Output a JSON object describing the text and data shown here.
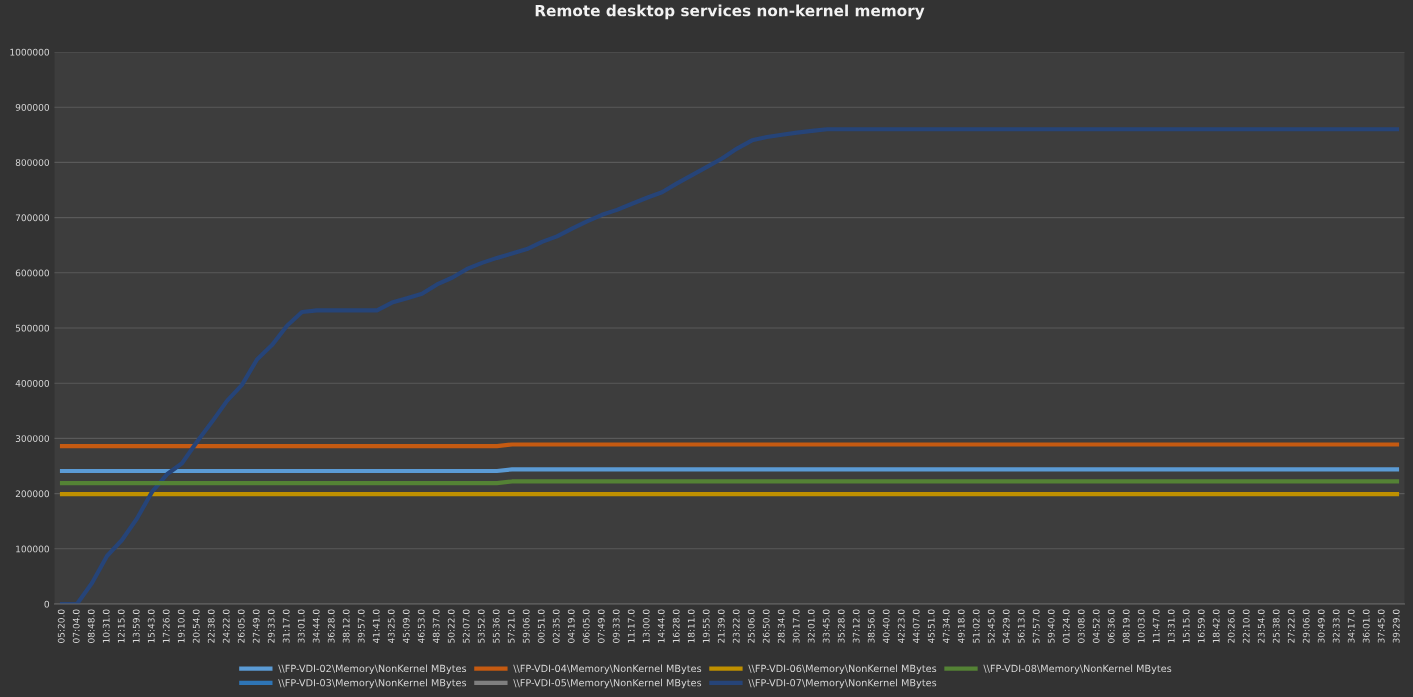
{
  "chart_data": {
    "type": "line",
    "title": "Remote desktop services non-kernel memory",
    "categories": [
      "05:20.0",
      "07:04.0",
      "08:48.0",
      "10:31.0",
      "12:15.0",
      "13:59.0",
      "15:43.0",
      "17:26.0",
      "19:10.0",
      "20:54.0",
      "22:38.0",
      "24:22.0",
      "26:05.0",
      "27:49.0",
      "29:33.0",
      "31:17.0",
      "33:01.0",
      "34:44.0",
      "36:28.0",
      "38:12.0",
      "39:57.0",
      "41:41.0",
      "43:25.0",
      "45:09.0",
      "46:53.0",
      "48:37.0",
      "50:22.0",
      "52:07.0",
      "53:52.0",
      "55:36.0",
      "57:21.0",
      "59:06.0",
      "00:51.0",
      "02:35.0",
      "04:19.0",
      "06:05.0",
      "07:49.0",
      "09:33.0",
      "11:17.0",
      "13:00.0",
      "14:44.0",
      "16:28.0",
      "18:11.0",
      "19:55.0",
      "21:39.0",
      "23:22.0",
      "25:06.0",
      "26:50.0",
      "28:34.0",
      "30:17.0",
      "32:01.0",
      "33:45.0",
      "35:28.0",
      "37:12.0",
      "38:56.0",
      "40:40.0",
      "42:23.0",
      "44:07.0",
      "45:51.0",
      "47:34.0",
      "49:18.0",
      "51:02.0",
      "52:45.0",
      "54:29.0",
      "56:13.0",
      "57:57.0",
      "59:40.0",
      "01:24.0",
      "03:08.0",
      "04:52.0",
      "06:36.0",
      "08:19.0",
      "10:03.0",
      "11:47.0",
      "13:31.0",
      "15:15.0",
      "16:59.0",
      "18:42.0",
      "20:26.0",
      "22:10.0",
      "23:54.0",
      "25:38.0",
      "27:22.0",
      "29:06.0",
      "30:49.0",
      "32:33.0",
      "34:17.0",
      "36:01.0",
      "37:45.0",
      "39:29.0"
    ],
    "ylim": [
      0,
      1000000
    ],
    "yticks": [
      0,
      100000,
      200000,
      300000,
      400000,
      500000,
      600000,
      700000,
      800000,
      900000,
      1000000
    ],
    "grid": "y",
    "legend": "bottom",
    "marker": "none",
    "line_style": "solid",
    "series": [
      {
        "name": "\\\\FP-VDI-02\\Memory\\NonKernel MBytes",
        "color": "#5b9bd5",
        "values": [
          241000,
          241000,
          241000,
          241000,
          241000,
          241000,
          241000,
          241000,
          241000,
          241000,
          241000,
          241000,
          241000,
          241000,
          241000,
          241000,
          241000,
          241000,
          241000,
          241000,
          241000,
          241000,
          241000,
          241000,
          241000,
          241000,
          241000,
          241000,
          241000,
          241000,
          244000,
          244000,
          244000,
          244000,
          244000,
          244000,
          244000,
          244000,
          244000,
          244000,
          244000,
          244000,
          244000,
          244000,
          244000,
          244000,
          244000,
          244000,
          244000,
          244000,
          244000,
          244000,
          244000,
          244000,
          244000,
          244000,
          244000,
          244000,
          244000,
          244000,
          244000,
          244000,
          244000,
          244000,
          244000,
          244000,
          244000,
          244000,
          244000,
          244000,
          244000,
          244000,
          244000,
          244000,
          244000,
          244000,
          244000,
          244000,
          244000,
          244000,
          244000,
          244000,
          244000,
          244000,
          244000,
          244000,
          244000,
          244000,
          244000,
          244000
        ]
      },
      {
        "name": "\\\\FP-VDI-03\\Memory\\NonKernel MBytes",
        "color": "#2e75b6",
        "values": [
          null,
          null,
          null,
          null,
          null,
          null,
          null,
          null,
          null,
          null,
          null,
          null,
          null,
          null,
          null,
          null,
          null,
          null,
          null,
          null,
          null,
          null,
          null,
          null,
          null,
          null,
          null,
          null,
          null,
          null,
          null,
          null,
          null,
          null,
          null,
          null,
          null,
          null,
          null,
          null,
          null,
          null,
          null,
          null,
          null,
          null,
          null,
          null,
          null,
          null,
          null,
          null,
          null,
          null,
          null,
          null,
          null,
          null,
          null,
          null,
          null,
          null,
          null,
          null,
          null,
          null,
          null,
          null,
          null,
          null,
          null,
          null,
          null,
          null,
          null,
          null,
          null,
          null,
          null,
          null,
          null,
          null,
          null,
          null,
          null,
          null,
          null,
          null,
          null,
          null
        ]
      },
      {
        "name": "\\\\FP-VDI-04\\Memory\\NonKernel MBytes",
        "color": "#c55a11",
        "values": [
          286000,
          286000,
          286000,
          286000,
          286000,
          286000,
          286000,
          286000,
          286000,
          286000,
          286000,
          286000,
          286000,
          286000,
          286000,
          286000,
          286000,
          286000,
          286000,
          286000,
          286000,
          286000,
          286000,
          286000,
          286000,
          286000,
          286000,
          286000,
          286000,
          286000,
          289000,
          289000,
          289000,
          289000,
          289000,
          289000,
          289000,
          289000,
          289000,
          289000,
          289000,
          289000,
          289000,
          289000,
          289000,
          289000,
          289000,
          289000,
          289000,
          289000,
          289000,
          289000,
          289000,
          289000,
          289000,
          289000,
          289000,
          289000,
          289000,
          289000,
          289000,
          289000,
          289000,
          289000,
          289000,
          289000,
          289000,
          289000,
          289000,
          289000,
          289000,
          289000,
          289000,
          289000,
          289000,
          289000,
          289000,
          289000,
          289000,
          289000,
          289000,
          289000,
          289000,
          289000,
          289000,
          289000,
          289000,
          289000,
          289000,
          289000
        ]
      },
      {
        "name": "\\\\FP-VDI-05\\Memory\\NonKernel MBytes",
        "color": "#7f7f7f",
        "values": [
          null,
          null,
          null,
          null,
          null,
          null,
          null,
          null,
          null,
          null,
          null,
          null,
          null,
          null,
          null,
          null,
          null,
          null,
          null,
          null,
          null,
          null,
          null,
          null,
          null,
          null,
          null,
          null,
          null,
          null,
          null,
          null,
          null,
          null,
          null,
          null,
          null,
          null,
          null,
          null,
          null,
          null,
          null,
          null,
          null,
          null,
          null,
          null,
          null,
          null,
          null,
          null,
          null,
          null,
          null,
          null,
          null,
          null,
          null,
          null,
          null,
          null,
          null,
          null,
          null,
          null,
          null,
          null,
          null,
          null,
          null,
          null,
          null,
          null,
          null,
          null,
          null,
          null,
          null,
          null,
          null,
          null,
          null,
          null,
          null,
          null,
          null,
          null,
          null,
          null
        ]
      },
      {
        "name": "\\\\FP-VDI-06\\Memory\\NonKernel MBytes",
        "color": "#bf9000",
        "values": [
          199000,
          199000,
          199000,
          199000,
          199000,
          199000,
          199000,
          199000,
          199000,
          199000,
          199000,
          199000,
          199000,
          199000,
          199000,
          199000,
          199000,
          199000,
          199000,
          199000,
          199000,
          199000,
          199000,
          199000,
          199000,
          199000,
          199000,
          199000,
          199000,
          199000,
          199000,
          199000,
          199000,
          199000,
          199000,
          199000,
          199000,
          199000,
          199000,
          199000,
          199000,
          199000,
          199000,
          199000,
          199000,
          199000,
          199000,
          199000,
          199000,
          199000,
          199000,
          199000,
          199000,
          199000,
          199000,
          199000,
          199000,
          199000,
          199000,
          199000,
          199000,
          199000,
          199000,
          199000,
          199000,
          199000,
          199000,
          199000,
          199000,
          199000,
          199000,
          199000,
          199000,
          199000,
          199000,
          199000,
          199000,
          199000,
          199000,
          199000,
          199000,
          199000,
          199000,
          199000,
          199000,
          199000,
          199000,
          199000,
          199000,
          199000
        ]
      },
      {
        "name": "\\\\FP-VDI-07\\Memory\\NonKernel MBytes",
        "color": "#264478",
        "values": [
          0,
          0,
          38000,
          87000,
          116000,
          155000,
          203000,
          235000,
          255000,
          294000,
          330000,
          368000,
          397000,
          443000,
          469000,
          504000,
          529000,
          532000,
          532000,
          532000,
          532000,
          532000,
          546000,
          554000,
          562000,
          579000,
          591000,
          607000,
          618000,
          627000,
          635000,
          643000,
          656000,
          666000,
          680000,
          693000,
          705000,
          714000,
          725000,
          736000,
          746000,
          762000,
          777000,
          792000,
          807000,
          825000,
          840000,
          846000,
          850000,
          854000,
          857000,
          860000,
          860000,
          860000,
          860000,
          860000,
          860000,
          860000,
          860000,
          860000,
          860000,
          860000,
          860000,
          860000,
          860000,
          860000,
          860000,
          860000,
          860000,
          860000,
          860000,
          860000,
          860000,
          860000,
          860000,
          860000,
          860000,
          860000,
          860000,
          860000,
          860000,
          860000,
          860000,
          860000,
          860000,
          860000,
          860000,
          860000,
          860000,
          860000
        ]
      },
      {
        "name": "\\\\FP-VDI-08\\Memory\\NonKernel MBytes",
        "color": "#548235",
        "values": [
          219000,
          219000,
          219000,
          219000,
          219000,
          219000,
          219000,
          219000,
          219000,
          219000,
          219000,
          219000,
          219000,
          219000,
          219000,
          219000,
          219000,
          219000,
          219000,
          219000,
          219000,
          219000,
          219000,
          219000,
          219000,
          219000,
          219000,
          219000,
          219000,
          219000,
          222000,
          222000,
          222000,
          222000,
          222000,
          222000,
          222000,
          222000,
          222000,
          222000,
          222000,
          222000,
          222000,
          222000,
          222000,
          222000,
          222000,
          222000,
          222000,
          222000,
          222000,
          222000,
          222000,
          222000,
          222000,
          222000,
          222000,
          222000,
          222000,
          222000,
          222000,
          222000,
          222000,
          222000,
          222000,
          222000,
          222000,
          222000,
          222000,
          222000,
          222000,
          222000,
          222000,
          222000,
          222000,
          222000,
          222000,
          222000,
          222000,
          222000,
          222000,
          222000,
          222000,
          222000,
          222000,
          222000,
          222000,
          222000,
          222000,
          222000
        ]
      }
    ]
  }
}
